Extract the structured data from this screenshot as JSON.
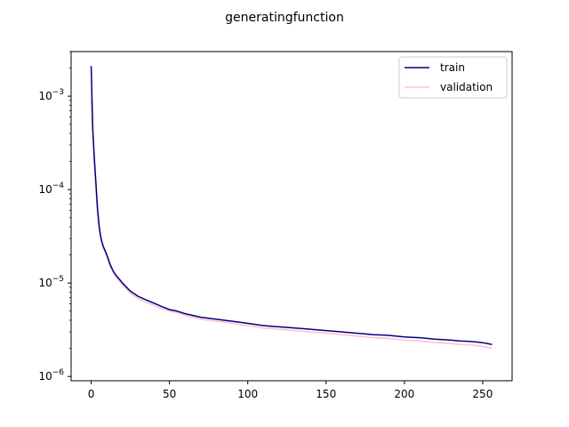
{
  "chart_data": {
    "type": "line",
    "title": "generatingfunction",
    "xlabel": "",
    "ylabel": "",
    "xlim": [
      -12.8,
      268.8
    ],
    "ylim": [
      9e-07,
      0.003
    ],
    "yscale": "log",
    "x_ticks": [
      0,
      50,
      100,
      150,
      200,
      250
    ],
    "y_ticks": [
      {
        "value": 1e-06,
        "base": "10",
        "exp": "−6"
      },
      {
        "value": 1e-05,
        "base": "10",
        "exp": "−5"
      },
      {
        "value": 0.0001,
        "base": "10",
        "exp": "−4"
      },
      {
        "value": 0.001,
        "base": "10",
        "exp": "−3"
      }
    ],
    "grid": false,
    "legend_position": "top-right",
    "series": [
      {
        "name": "train",
        "color": "#000080",
        "x": [
          0,
          1,
          2,
          3,
          4,
          5,
          6,
          7,
          8,
          9,
          10,
          12,
          14,
          16,
          18,
          20,
          25,
          30,
          35,
          40,
          45,
          50,
          55,
          60,
          65,
          70,
          75,
          80,
          85,
          90,
          95,
          100,
          105,
          110,
          115,
          120,
          125,
          130,
          135,
          140,
          145,
          150,
          155,
          160,
          165,
          170,
          175,
          180,
          185,
          190,
          195,
          200,
          205,
          210,
          215,
          220,
          225,
          230,
          235,
          240,
          245,
          250,
          256
        ],
        "y": [
          0.0021,
          0.00045,
          0.00022,
          0.00012,
          6.5e-05,
          4.2e-05,
          3.2e-05,
          2.7e-05,
          2.4e-05,
          2.2e-05,
          2e-05,
          1.6e-05,
          1.35e-05,
          1.2e-05,
          1.1e-05,
          1e-05,
          8.2e-06,
          7.2e-06,
          6.6e-06,
          6.1e-06,
          5.6e-06,
          5.2e-06,
          5e-06,
          4.7e-06,
          4.5e-06,
          4.3e-06,
          4.2e-06,
          4.1e-06,
          4e-06,
          3.9e-06,
          3.8e-06,
          3.7e-06,
          3.6e-06,
          3.5e-06,
          3.45e-06,
          3.4e-06,
          3.35e-06,
          3.3e-06,
          3.25e-06,
          3.2e-06,
          3.15e-06,
          3.1e-06,
          3.05e-06,
          3e-06,
          2.95e-06,
          2.9e-06,
          2.85e-06,
          2.8e-06,
          2.78e-06,
          2.75e-06,
          2.7e-06,
          2.65e-06,
          2.62e-06,
          2.6e-06,
          2.55e-06,
          2.5e-06,
          2.48e-06,
          2.45e-06,
          2.4e-06,
          2.38e-06,
          2.35e-06,
          2.3e-06,
          2.2e-06
        ]
      },
      {
        "name": "validation",
        "color": "#ffc0cb",
        "x": [
          0,
          1,
          2,
          3,
          4,
          5,
          6,
          7,
          8,
          9,
          10,
          12,
          14,
          16,
          18,
          20,
          25,
          30,
          35,
          40,
          45,
          50,
          55,
          60,
          65,
          70,
          75,
          80,
          85,
          90,
          95,
          100,
          105,
          110,
          115,
          120,
          125,
          130,
          135,
          140,
          145,
          150,
          155,
          160,
          165,
          170,
          175,
          180,
          185,
          190,
          195,
          200,
          205,
          210,
          215,
          220,
          225,
          230,
          235,
          240,
          245,
          250,
          256
        ],
        "y": [
          0.00095,
          0.0004,
          0.00019,
          0.0001,
          5.5e-05,
          3.8e-05,
          3e-05,
          2.6e-05,
          2.3e-05,
          2.1e-05,
          1.9e-05,
          1.5e-05,
          1.3e-05,
          1.15e-05,
          1.05e-05,
          9.5e-06,
          7.8e-06,
          6.8e-06,
          6.2e-06,
          5.8e-06,
          5.3e-06,
          5e-06,
          4.8e-06,
          4.5e-06,
          4.3e-06,
          4.1e-06,
          4e-06,
          3.9e-06,
          3.8e-06,
          3.7e-06,
          3.6e-06,
          3.5e-06,
          3.4e-06,
          3.3e-06,
          3.25e-06,
          3.2e-06,
          3.15e-06,
          3.1e-06,
          3.05e-06,
          3e-06,
          2.95e-06,
          2.9e-06,
          2.85e-06,
          2.8e-06,
          2.75e-06,
          2.7e-06,
          2.65e-06,
          2.6e-06,
          2.58e-06,
          2.55e-06,
          2.5e-06,
          2.45e-06,
          2.42e-06,
          2.4e-06,
          2.35e-06,
          2.3e-06,
          2.28e-06,
          2.25e-06,
          2.2e-06,
          2.18e-06,
          2.15e-06,
          2.1e-06,
          2e-06
        ]
      }
    ]
  }
}
